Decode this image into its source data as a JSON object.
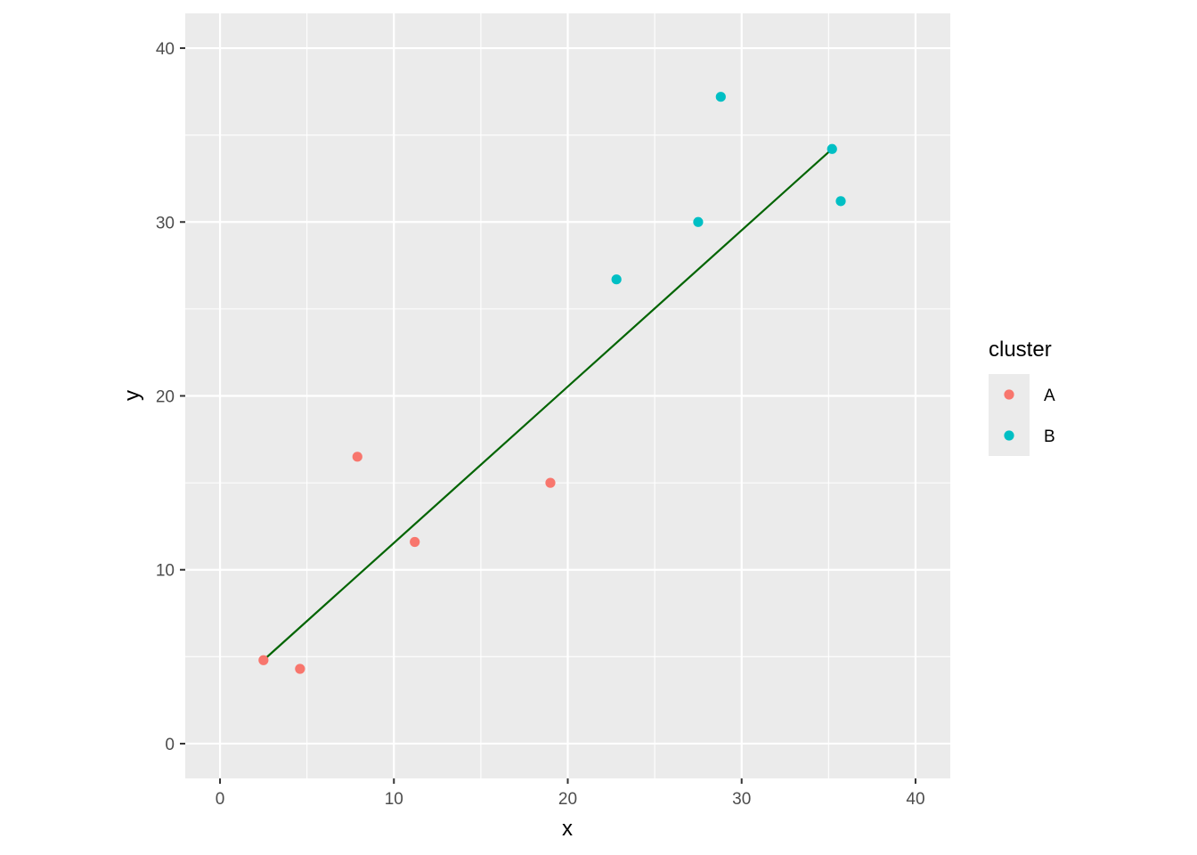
{
  "chart_data": {
    "type": "scatter",
    "xlabel": "x",
    "ylabel": "y",
    "xlim": [
      -2,
      42
    ],
    "ylim": [
      -2,
      42
    ],
    "x_ticks": [
      0,
      10,
      20,
      30,
      40
    ],
    "y_ticks": [
      0,
      10,
      20,
      30,
      40
    ],
    "grid": true,
    "legend": {
      "title": "cluster",
      "position": "right",
      "entries": [
        {
          "label": "A",
          "color": "#F8766D"
        },
        {
          "label": "B",
          "color": "#00BFC4"
        }
      ]
    },
    "series": [
      {
        "name": "A",
        "color": "#F8766D",
        "points": [
          {
            "x": 2.5,
            "y": 4.8
          },
          {
            "x": 4.6,
            "y": 4.3
          },
          {
            "x": 7.9,
            "y": 16.5
          },
          {
            "x": 11.2,
            "y": 11.6
          },
          {
            "x": 19.0,
            "y": 15.0
          }
        ]
      },
      {
        "name": "B",
        "color": "#00BFC4",
        "points": [
          {
            "x": 22.8,
            "y": 26.7
          },
          {
            "x": 27.5,
            "y": 30.0
          },
          {
            "x": 28.8,
            "y": 37.2
          },
          {
            "x": 35.2,
            "y": 34.2
          },
          {
            "x": 35.7,
            "y": 31.2
          }
        ]
      }
    ],
    "trend_line": {
      "color": "#006400",
      "from": {
        "x": 2.5,
        "y": 4.8
      },
      "to": {
        "x": 35.2,
        "y": 34.2
      }
    }
  }
}
